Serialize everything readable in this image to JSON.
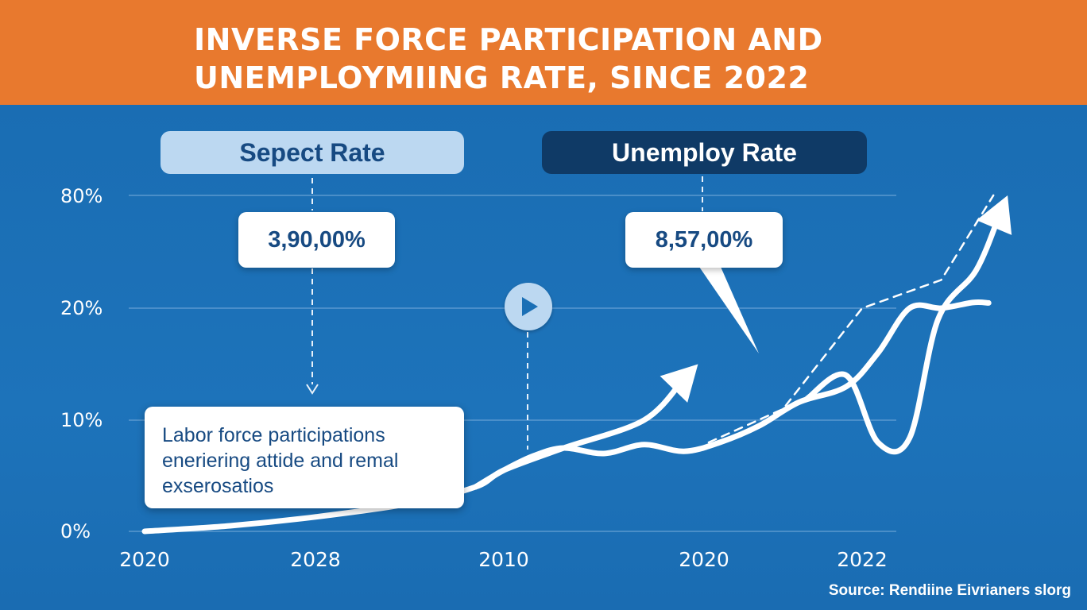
{
  "title_lines": [
    "INVERSE FORCE PARTICIPATION AND",
    "UNEMPLOYMIING RATE, SINCE 2022"
  ],
  "pills": {
    "left": "Sepect Rate",
    "right": "Unemploy Rate"
  },
  "callouts": {
    "left": "3,90,00%",
    "right": "8,57,00%"
  },
  "note_lines": [
    "Labor force participations",
    "eneriering attide and remal",
    "exserosatios"
  ],
  "source": "Source: Rendiine Eivrianers slorg",
  "colors": {
    "banner": "#e8792e",
    "panel": "#1a6fb5",
    "line": "#ffffff",
    "pill_light": "#bcd8f1",
    "pill_dark": "#0f3a66",
    "text_dark": "#174a82"
  },
  "icons": [
    "play-icon",
    "arrow-head-icon"
  ],
  "chart_data": {
    "type": "line",
    "title": "INVERSE FORCE PARTICIPATION AND UNEMPLOYMIING RATE, SINCE 2022",
    "y_tick_labels": [
      "0%",
      "10%",
      "20%",
      "80%"
    ],
    "x_tick_labels": [
      "2020",
      "2028",
      "2010",
      "2020",
      "2022"
    ],
    "grid": true,
    "legend": "top",
    "series": [
      {
        "name": "Sepect Rate",
        "points": [
          [
            0.0,
            0.0
          ],
          [
            0.5,
            0.5
          ],
          [
            1.0,
            1.3
          ],
          [
            1.5,
            2.5
          ],
          [
            1.85,
            4.0
          ],
          [
            2.0,
            5.5
          ],
          [
            2.3,
            7.5
          ],
          [
            2.7,
            10.0
          ],
          [
            2.97,
            15.0
          ]
        ],
        "arrow": true,
        "marker_label": "3,90,00%"
      },
      {
        "name": "Unemploy Rate",
        "points": [
          [
            1.85,
            4.0
          ],
          [
            2.0,
            5.5
          ],
          [
            2.15,
            6.8
          ],
          [
            2.3,
            7.5
          ],
          [
            2.5,
            7.0
          ],
          [
            2.7,
            7.8
          ],
          [
            2.9,
            7.2
          ],
          [
            3.1,
            8.0
          ],
          [
            3.35,
            9.5
          ],
          [
            3.6,
            11.6
          ],
          [
            3.9,
            13.0
          ],
          [
            4.1,
            16.0
          ],
          [
            4.3,
            20.0
          ],
          [
            4.5,
            20.0
          ],
          [
            4.7,
            23.0
          ],
          [
            4.8,
            22.8
          ]
        ],
        "arrow": false,
        "marker_label": "8,57,00%"
      },
      {
        "name": "",
        "points": [
          [
            3.65,
            11.9
          ],
          [
            3.9,
            14.0
          ],
          [
            4.1,
            8.0
          ],
          [
            4.3,
            8.4
          ],
          [
            4.48,
            19.0
          ],
          [
            4.72,
            40.0
          ],
          [
            4.92,
            80.0
          ]
        ],
        "arrow": true
      },
      {
        "name": "",
        "dashed": true,
        "points": [
          [
            3.03,
            8.0
          ],
          [
            3.5,
            11.0
          ],
          [
            4.0,
            20.0
          ],
          [
            4.5,
            35.0
          ],
          [
            4.83,
            80.0
          ]
        ],
        "arrow": false
      }
    ]
  }
}
